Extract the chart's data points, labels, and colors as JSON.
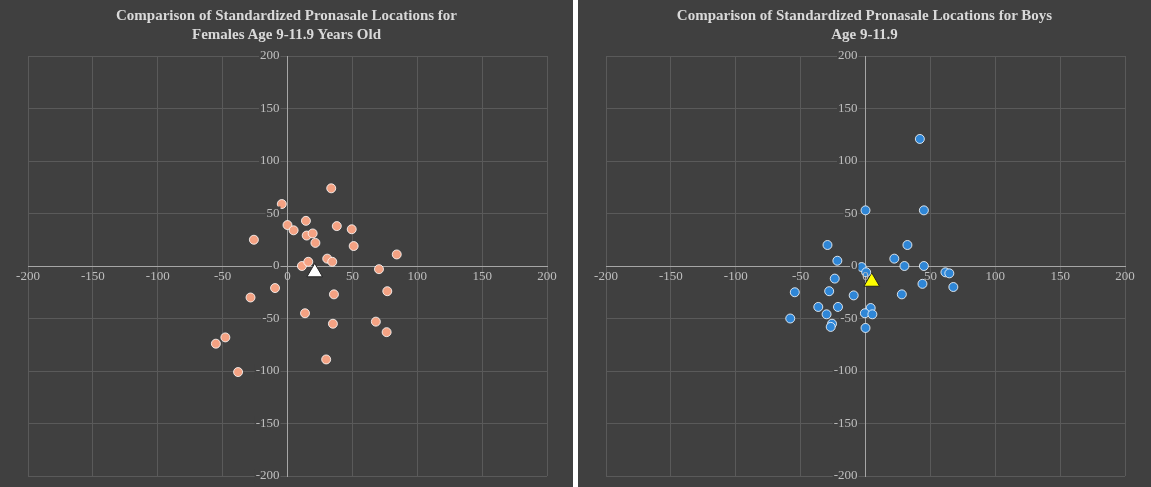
{
  "chart_data": [
    {
      "type": "scatter",
      "title": "Comparison of Standardized Pronasale Locations for\nFemales Age 9-11.9 Years Old",
      "xlim": [
        -200,
        200
      ],
      "ylim": [
        -200,
        200
      ],
      "xticks": [
        -200,
        -150,
        -100,
        -50,
        0,
        50,
        100,
        150,
        200
      ],
      "yticks": [
        -200,
        -150,
        -100,
        -50,
        0,
        50,
        100,
        150,
        200
      ],
      "grid": true,
      "legend": false,
      "series": [
        {
          "color": "#f4a283",
          "marker": "circle",
          "x": [
            33.7,
            -4.4,
            0,
            4.7,
            14.2,
            14.8,
            19.4,
            21.5,
            38,
            49.5,
            51,
            84.2,
            -25.9,
            11.1,
            16,
            30.6,
            34.5,
            70.5,
            35.8,
            76.9,
            -9.6,
            -28.5,
            13.5,
            35,
            68.1,
            76.4,
            -47.9,
            -55.2,
            29.8,
            -38.1
          ],
          "values": [
            74,
            59,
            39,
            34,
            43,
            29,
            31,
            22,
            38,
            35,
            19,
            11,
            25,
            0,
            4,
            7,
            4,
            -3,
            -27,
            -24,
            -21,
            -30,
            -45,
            -55,
            -53,
            -63,
            -68,
            -74,
            -89,
            -101
          ]
        },
        {
          "color": "#ffffff",
          "marker": "triangle",
          "x": [
            21
          ],
          "values": [
            -6
          ]
        }
      ]
    },
    {
      "type": "scatter",
      "title": "Comparison of Standardized Pronasale Locations for Boys\nAge 9-11.9",
      "xlim": [
        -200,
        200
      ],
      "ylim": [
        -200,
        200
      ],
      "xticks": [
        -200,
        -150,
        -100,
        -50,
        0,
        50,
        100,
        150,
        200
      ],
      "yticks": [
        -200,
        -150,
        -100,
        -50,
        0,
        50,
        100,
        150,
        200
      ],
      "grid": true,
      "legend": false,
      "series": [
        {
          "color": "#2f86d6",
          "marker": "circle",
          "x": [
            41.9,
            0,
            45,
            -29.3,
            32.3,
            -21.7,
            22.2,
            30,
            45,
            -3,
            0.5,
            61.6,
            64.6,
            -23.7,
            43.9,
            67.7,
            -54.5,
            -28,
            -9.1,
            28,
            -36.4,
            -21.2,
            -30,
            4,
            -0.5,
            5.3,
            -58,
            -25.8,
            -26.8,
            0
          ],
          "values": [
            121,
            53,
            53,
            20,
            20,
            5,
            7,
            0,
            0,
            -1,
            -6,
            -6,
            -7,
            -12,
            -17,
            -20,
            -25,
            -24,
            -28,
            -27,
            -39,
            -39,
            -46,
            -40,
            -45,
            -46,
            -50,
            -55,
            -58,
            -59
          ]
        },
        {
          "color": "#ffff00",
          "marker": "triangle",
          "x": [
            4.8
          ],
          "values": [
            -15
          ]
        }
      ]
    }
  ]
}
